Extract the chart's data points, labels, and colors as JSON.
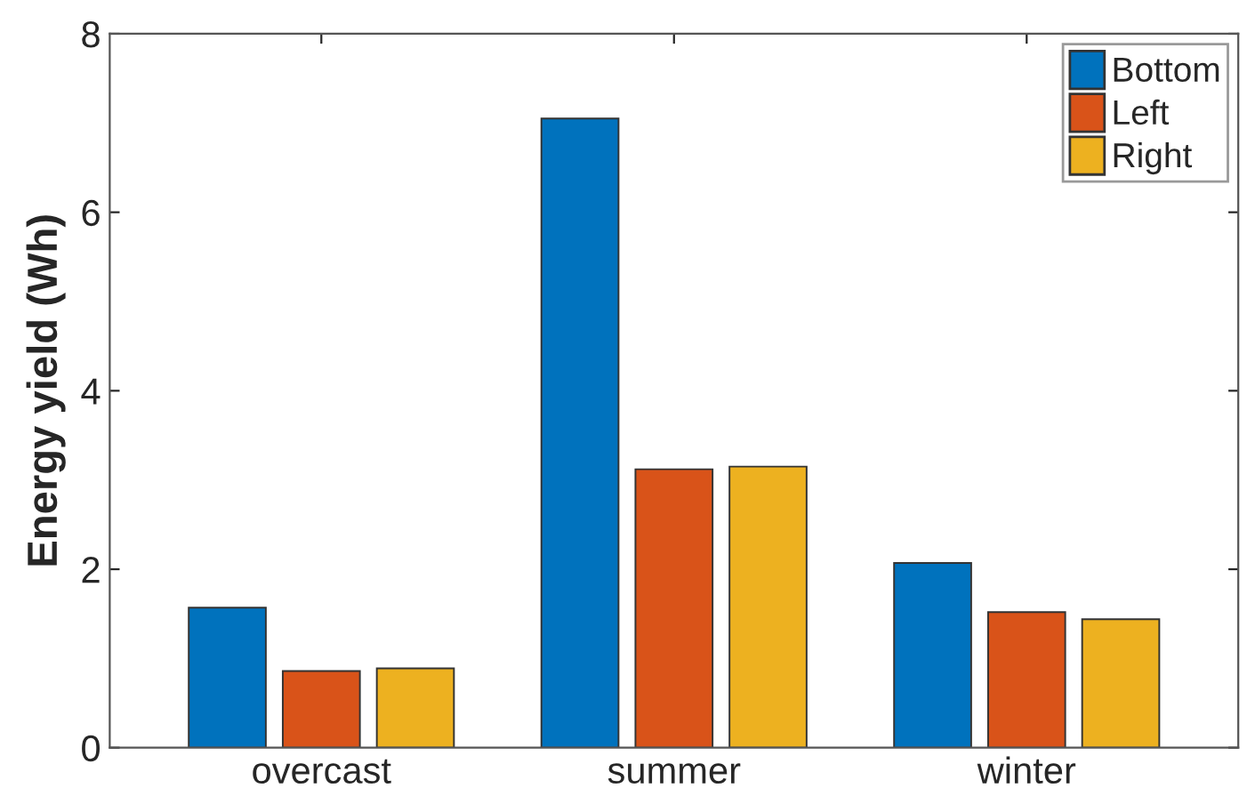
{
  "chart_data": {
    "type": "bar",
    "ylabel": "Energy yield (Wh)",
    "categories": [
      "overcast",
      "summer",
      "winter"
    ],
    "series": [
      {
        "name": "Bottom",
        "color": "#0072bd",
        "values": [
          1.57,
          7.05,
          2.07
        ]
      },
      {
        "name": "Left",
        "color": "#d95319",
        "values": [
          0.86,
          3.12,
          1.52
        ]
      },
      {
        "name": "Right",
        "color": "#edb120",
        "values": [
          0.89,
          3.15,
          1.44
        ]
      }
    ],
    "ylim": [
      0,
      8
    ],
    "yticks": [
      0,
      2,
      4,
      6,
      8
    ],
    "grid": false,
    "legend": "top right"
  }
}
